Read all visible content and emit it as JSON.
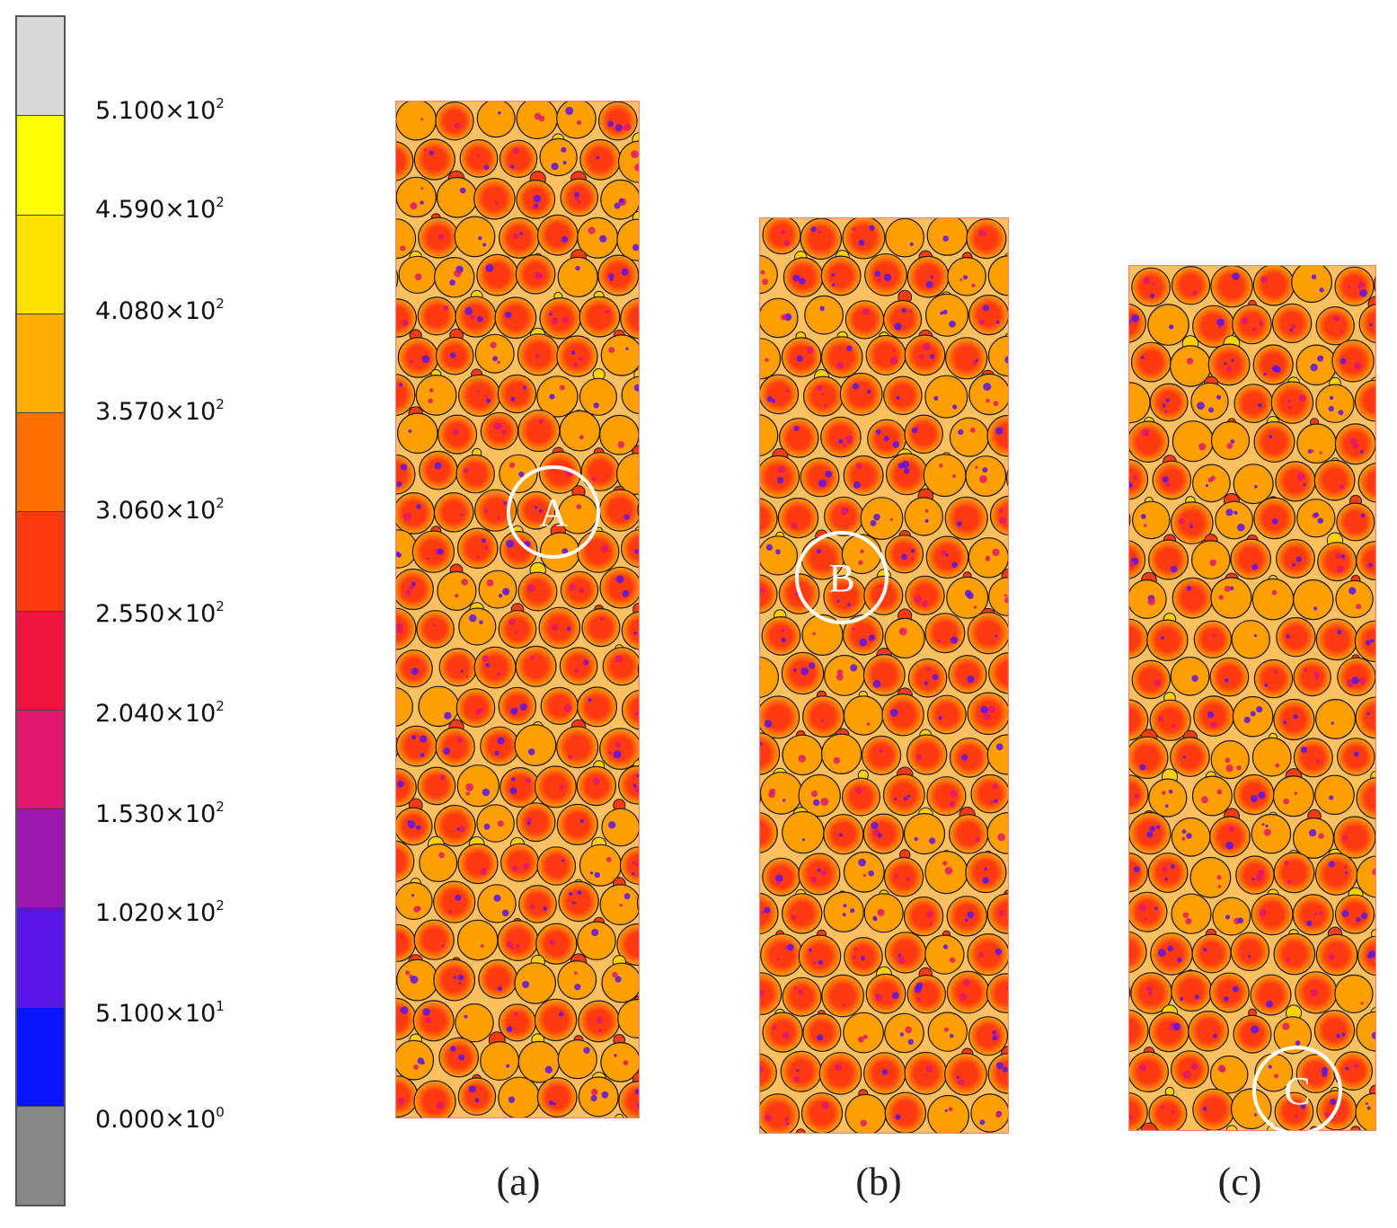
{
  "legend": {
    "ticks": [
      {
        "mantissa": "5.100",
        "exponent": "2"
      },
      {
        "mantissa": "4.590",
        "exponent": "2"
      },
      {
        "mantissa": "4.080",
        "exponent": "2"
      },
      {
        "mantissa": "3.570",
        "exponent": "2"
      },
      {
        "mantissa": "3.060",
        "exponent": "2"
      },
      {
        "mantissa": "2.550",
        "exponent": "2"
      },
      {
        "mantissa": "2.040",
        "exponent": "2"
      },
      {
        "mantissa": "1.530",
        "exponent": "2"
      },
      {
        "mantissa": "1.020",
        "exponent": "2"
      },
      {
        "mantissa": "5.100",
        "exponent": "1"
      },
      {
        "mantissa": "0.000",
        "exponent": "0"
      }
    ],
    "colors": [
      "#d9d9d9",
      "#ffff00",
      "#ffe000",
      "#ffae00",
      "#ff7000",
      "#ff3a10",
      "#f01440",
      "#e0186e",
      "#9a18b0",
      "#5a14e8",
      "#0a14ff",
      "#888888"
    ]
  },
  "panels": [
    {
      "caption": "(a)",
      "marker": "A"
    },
    {
      "caption": "(b)",
      "marker": "B"
    },
    {
      "caption": "(c)",
      "marker": "C"
    }
  ],
  "particle_colors": {
    "base": "#ff3a10",
    "high": "#ffa000",
    "low": "#e0186e",
    "min": "#5a14e8",
    "boundary": "#1a1a1a"
  }
}
